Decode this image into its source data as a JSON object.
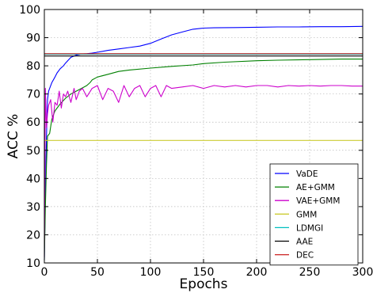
{
  "chart_data": {
    "type": "line",
    "title": "",
    "xlabel": "Epochs",
    "ylabel": "ACC %",
    "xlim": [
      0,
      300
    ],
    "ylim": [
      10,
      100
    ],
    "xticks": [
      "0",
      "50",
      "100",
      "150",
      "200",
      "250",
      "300"
    ],
    "yticks": [
      "10",
      "20",
      "30",
      "40",
      "50",
      "60",
      "70",
      "80",
      "90",
      "100"
    ],
    "grid": true,
    "legend_position": "lower-right",
    "series": [
      {
        "name": "VaDE",
        "color": "#0000ff",
        "x": [
          0,
          1,
          2,
          3,
          4,
          5,
          7,
          10,
          12,
          15,
          18,
          20,
          25,
          30,
          35,
          40,
          45,
          50,
          60,
          70,
          80,
          90,
          100,
          110,
          120,
          130,
          140,
          150,
          160,
          180,
          200,
          220,
          240,
          260,
          280,
          300
        ],
        "y": [
          11,
          35,
          55,
          68,
          71,
          72,
          74,
          76,
          77.5,
          79,
          80,
          81,
          83,
          83.8,
          84.2,
          84.3,
          84.5,
          84.8,
          85.5,
          86,
          86.5,
          87,
          88,
          89.5,
          91,
          92,
          93,
          93.4,
          93.5,
          93.6,
          93.7,
          93.8,
          93.8,
          93.9,
          93.9,
          94
        ]
      },
      {
        "name": "AE+GMM",
        "color": "#008000",
        "x": [
          0,
          1,
          2,
          3,
          5,
          7,
          10,
          15,
          20,
          25,
          30,
          35,
          40,
          43,
          45,
          50,
          60,
          70,
          80,
          100,
          120,
          140,
          150,
          170,
          200,
          220,
          250,
          280,
          300
        ],
        "y": [
          11,
          30,
          45,
          55,
          56,
          61,
          64,
          66.5,
          68.5,
          70,
          71,
          72,
          73,
          74,
          75,
          76,
          77,
          78,
          78.5,
          79.2,
          79.8,
          80.3,
          80.8,
          81.3,
          81.8,
          82,
          82.2,
          82.4,
          82.4
        ]
      },
      {
        "name": "VAE+GMM",
        "color": "#cc00cc",
        "x": [
          0,
          1,
          2,
          3,
          4,
          6,
          8,
          10,
          12,
          14,
          16,
          18,
          20,
          22,
          25,
          28,
          30,
          33,
          36,
          40,
          45,
          50,
          55,
          60,
          65,
          70,
          75,
          80,
          85,
          90,
          95,
          100,
          105,
          110,
          115,
          120,
          130,
          140,
          150,
          160,
          170,
          180,
          190,
          200,
          210,
          220,
          230,
          240,
          250,
          260,
          270,
          280,
          290,
          300
        ],
        "y": [
          12,
          72,
          58,
          63,
          66,
          68,
          60,
          67,
          66,
          71,
          65,
          70,
          69,
          71,
          67,
          72,
          68,
          71,
          72,
          69,
          72,
          73,
          68,
          72,
          71,
          67,
          73,
          69,
          72,
          73,
          69,
          72,
          73,
          69,
          73,
          72,
          72.5,
          73,
          72,
          73,
          72.5,
          73,
          72.5,
          73,
          73,
          72.5,
          73,
          72.8,
          73,
          72.8,
          73,
          73,
          72.8,
          72.8
        ]
      },
      {
        "name": "GMM",
        "color": "#cccc33",
        "x": [
          0,
          300
        ],
        "y": [
          53.5,
          53.5
        ]
      },
      {
        "name": "LDMGI",
        "color": "#00bfbf",
        "x": [
          0,
          300
        ],
        "y": [
          84.1,
          84.1
        ]
      },
      {
        "name": "AAE",
        "color": "#000000",
        "x": [
          0,
          300
        ],
        "y": [
          83.5,
          83.5
        ]
      },
      {
        "name": "DEC",
        "color": "#cc2222",
        "x": [
          0,
          300
        ],
        "y": [
          84.3,
          84.3
        ]
      }
    ]
  }
}
